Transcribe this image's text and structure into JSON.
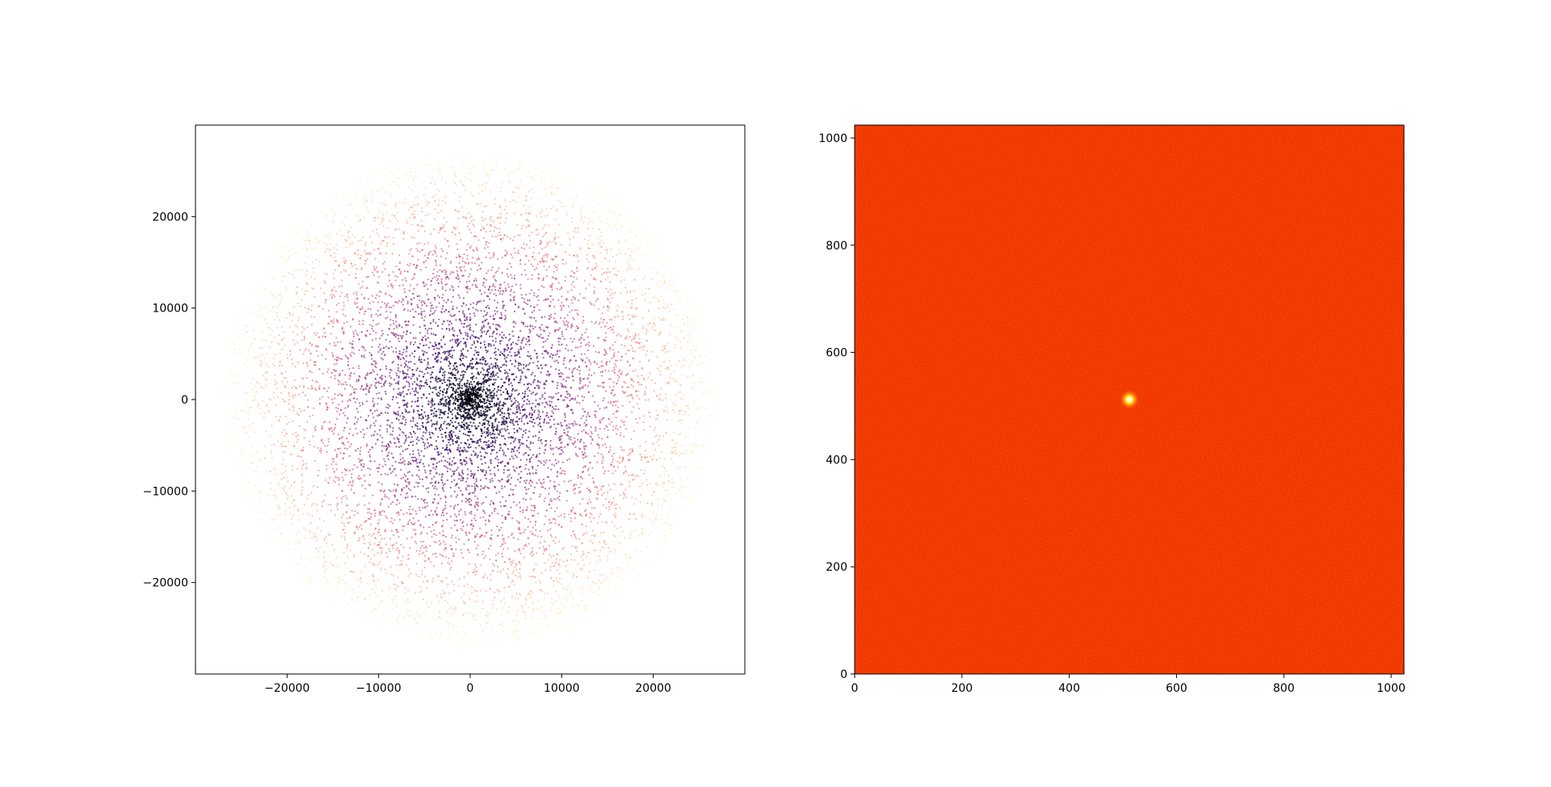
{
  "chart_data": [
    {
      "type": "scatter",
      "title": "",
      "xlabel": "",
      "ylabel": "",
      "xlim": [
        -30000,
        30000
      ],
      "ylim": [
        -30000,
        30000
      ],
      "xticks": [
        -20000,
        -10000,
        0,
        10000,
        20000
      ],
      "yticks": [
        -20000,
        -10000,
        0,
        10000,
        20000
      ],
      "xtick_labels": [
        "−20000",
        "−10000",
        "0",
        "10000",
        "20000"
      ],
      "ytick_labels": [
        "−20000",
        "−10000",
        "0",
        "10000",
        "20000"
      ],
      "disk_radius": 27000,
      "colormap": "magma",
      "color_by": "radius",
      "grid": false,
      "description_points": "dense random points within a disk, colored by distance from center"
    },
    {
      "type": "heatmap",
      "title": "",
      "xlabel": "",
      "ylabel": "",
      "xlim": [
        0,
        1024
      ],
      "ylim": [
        0,
        1024
      ],
      "xticks": [
        0,
        200,
        400,
        600,
        800,
        1000
      ],
      "yticks": [
        0,
        200,
        400,
        600,
        800,
        1000
      ],
      "xtick_labels": [
        "0",
        "200",
        "400",
        "600",
        "800",
        "1000"
      ],
      "ytick_labels": [
        "0",
        "200",
        "400",
        "600",
        "800",
        "1000"
      ],
      "colormap": "hot",
      "peak": {
        "x": 512,
        "y": 512
      },
      "grid": false
    }
  ],
  "colors": {
    "heatmap_background": "#ff3300",
    "heatmap_peak": "#ffff66",
    "axes": "#000000"
  }
}
